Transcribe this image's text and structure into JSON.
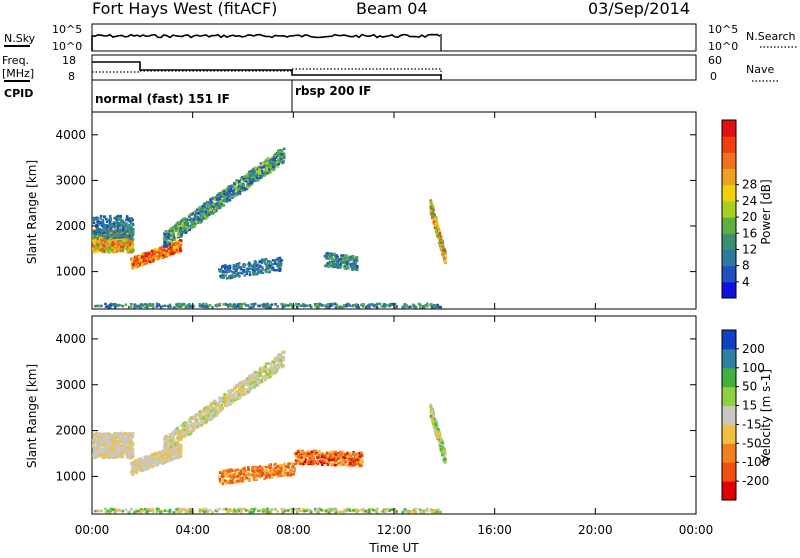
{
  "header": {
    "title": "Fort Hays West (fitACF)",
    "beam": "Beam 04",
    "date": "03/Sep/2014"
  },
  "panels": {
    "nsky": {
      "label": "N.Sky",
      "left_ticks": [
        "10^5",
        "10^0"
      ],
      "right_ticks": [
        "10^5",
        "10^0"
      ],
      "right_label": "N.Search"
    },
    "freq": {
      "label_line1": "Freq.",
      "label_line2": "[MHz]",
      "left_ticks": [
        "18",
        "8"
      ],
      "right_ticks": [
        "60",
        "0"
      ],
      "right_label": "Nave"
    },
    "cpid": {
      "label": "CPID",
      "modes": [
        {
          "text": "normal (fast) 151 IF"
        },
        {
          "text": "rbsp 200 IF"
        }
      ]
    }
  },
  "chart_data": [
    {
      "type": "heatmap",
      "name": "power",
      "ylabel": "Slant Range [km]",
      "y_ticks": [
        "1000",
        "2000",
        "3000",
        "4000"
      ],
      "colorbar": {
        "label": "Power [dB]",
        "ticks": [
          "4",
          "8",
          "12",
          "16",
          "20",
          "24",
          "28"
        ],
        "colors": [
          "#1010e0",
          "#2050c0",
          "#2c7aa0",
          "#3a9070",
          "#5fb040",
          "#a8d020",
          "#f0d010",
          "#f0a020",
          "#f07020",
          "#f04010",
          "#e01010"
        ]
      }
    },
    {
      "type": "heatmap",
      "name": "velocity",
      "ylabel": "Slant Range [km]",
      "y_ticks": [
        "1000",
        "2000",
        "3000",
        "4000"
      ],
      "colorbar": {
        "label": "Velocity [m s-1]",
        "ticks": [
          "-200",
          "-100",
          "-50",
          "-15",
          "15",
          "50",
          "100",
          "200"
        ],
        "colors": [
          "#e00000",
          "#f05010",
          "#f08020",
          "#f0c040",
          "#c8c8c0",
          "#90d040",
          "#40b040",
          "#3080a0",
          "#1040c0"
        ]
      }
    }
  ],
  "x_axis": {
    "label": "Time UT",
    "ticks": [
      "00:00",
      "04:00",
      "08:00",
      "12:00",
      "16:00",
      "20:00",
      "00:00"
    ]
  }
}
